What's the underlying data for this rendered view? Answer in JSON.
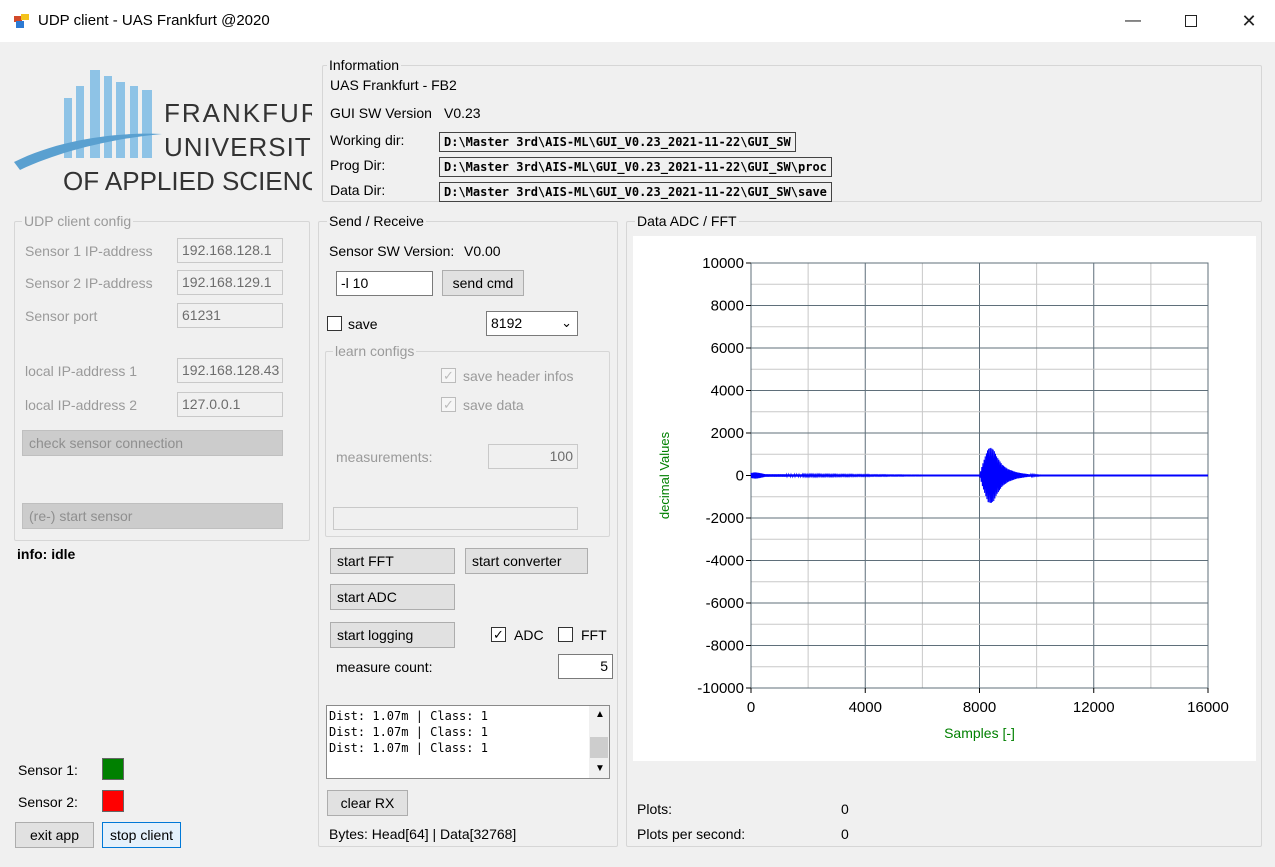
{
  "window": {
    "title": "UDP client - UAS Frankfurt @2020",
    "minimize_icon": "minimize-icon",
    "maximize_icon": "maximize-icon",
    "close_icon": "close-icon"
  },
  "logo": {
    "line1": "FRANKFURT",
    "line2": "UNIVERSITY",
    "line3": "OF APPLIED SCIENCES",
    "colors": {
      "bars": "#7fb8df",
      "swoosh": "#5aa0d0",
      "text": "#333333"
    }
  },
  "information": {
    "group_label": "Information",
    "org": "UAS Frankfurt - FB2",
    "gui_version_label": "GUI SW Version",
    "gui_version_value": "V0.23",
    "working_dir_label": "Working dir:",
    "working_dir_value": "D:\\Master 3rd\\AIS-ML\\GUI_V0.23_2021-11-22\\GUI_SW",
    "prog_dir_label": "Prog Dir:",
    "prog_dir_value": "D:\\Master 3rd\\AIS-ML\\GUI_V0.23_2021-11-22\\GUI_SW\\proc",
    "data_dir_label": "Data Dir:",
    "data_dir_value": "D:\\Master 3rd\\AIS-ML\\GUI_V0.23_2021-11-22\\GUI_SW\\save"
  },
  "udp_config": {
    "group_label": "UDP client config",
    "sensor1_label": "Sensor 1 IP-address",
    "sensor1_value": "192.168.128.1",
    "sensor2_label": "Sensor 2 IP-address",
    "sensor2_value": "192.168.129.1",
    "port_label": "Sensor port",
    "port_value": "61231",
    "local1_label": "local IP-address 1",
    "local1_value": "192.168.128.43",
    "local2_label": "local IP-address 2",
    "local2_value": "127.0.0.1",
    "check_button": "check sensor connection",
    "restart_button": "(re-) start sensor"
  },
  "status": {
    "info": "info: idle",
    "sensor1_label": "Sensor 1:",
    "sensor1_color": "#008000",
    "sensor2_label": "Sensor 2:",
    "sensor2_color": "#ff0000",
    "exit_button": "exit app",
    "stop_button": "stop client"
  },
  "send_receive": {
    "group_label": "Send / Receive",
    "sensor_sw_label": "Sensor SW Version:",
    "sensor_sw_value": "V0.00",
    "cmd_value": "-l 10",
    "send_button": "send cmd",
    "save_label": "save",
    "save_checked": false,
    "size_value": "8192",
    "learn_configs": {
      "group_label": "learn configs",
      "save_header_label": "save header infos",
      "save_data_label": "save data",
      "measurements_label": "measurements:",
      "measurements_value": "100"
    },
    "start_fft_button": "start FFT",
    "start_converter_button": "start converter",
    "start_adc_button": "start ADC",
    "start_logging_button": "start logging",
    "adc_label": "ADC",
    "adc_checked": true,
    "fft_label": "FFT",
    "fft_checked": false,
    "measure_count_label": "measure count:",
    "measure_count_value": "5",
    "log_lines": "Dist: 1.07m | Class: 1\nDist: 1.07m | Class: 1\nDist: 1.07m | Class: 1",
    "clear_button": "clear RX",
    "bytes_text": "Bytes: Head[64] | Data[32768]"
  },
  "data_panel": {
    "group_label": "Data ADC / FFT",
    "plots_label": "Plots:",
    "plots_value": "0",
    "pps_label": "Plots per second:",
    "pps_value": "0"
  },
  "chart_data": {
    "type": "line",
    "xlabel": "Samples [-]",
    "ylabel": "decimal Values",
    "xlim": [
      0,
      16000
    ],
    "ylim": [
      -10000,
      10000
    ],
    "x_ticks": [
      "0",
      "4000",
      "8000",
      "12000",
      "16000"
    ],
    "y_ticks": [
      "10000",
      "8000",
      "6000",
      "4000",
      "2000",
      "0",
      "-2000",
      "-4000",
      "-6000",
      "-8000",
      "-10000"
    ],
    "grid": true,
    "series_color": "#0000ff",
    "axis_label_color": "#008000",
    "series": [
      {
        "values_description_free": true,
        "x": [
          0,
          150,
          300,
          500,
          8000,
          8100,
          8200,
          8300,
          8400,
          8500,
          8600,
          8700,
          8800,
          9000,
          9300,
          9700,
          10300,
          16000
        ],
        "envelope": [
          120,
          150,
          120,
          60,
          0,
          500,
          900,
          1250,
          1300,
          1200,
          900,
          700,
          500,
          300,
          150,
          60,
          0,
          0
        ]
      }
    ]
  }
}
